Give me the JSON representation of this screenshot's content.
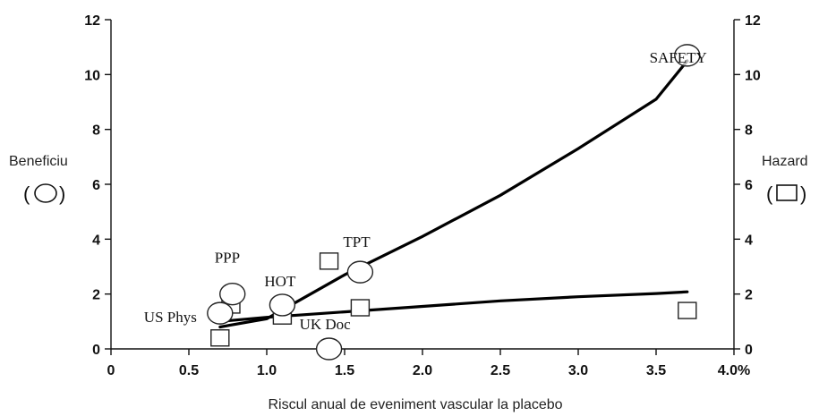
{
  "chart_data": {
    "type": "scatter",
    "xlabel": "Riscul anual de eveniment vascular la placebo",
    "ylabel_left": "Beneficiu",
    "ylabel_right": "Hazard",
    "left_symbol_open": "(",
    "left_symbol_close": ")",
    "right_symbol_open": "(",
    "right_symbol_close": ")",
    "xlim": [
      0,
      4.0
    ],
    "ylim": [
      0,
      12
    ],
    "x_ticks": [
      0,
      0.5,
      1.0,
      1.5,
      2.0,
      2.5,
      3.0,
      3.5,
      4.0
    ],
    "x_tick_labels": [
      "0",
      "0.5",
      "1.0",
      "1.5",
      "2.0",
      "2.5",
      "3.0",
      "3.5",
      "4.0%"
    ],
    "y_ticks": [
      0,
      2,
      4,
      6,
      8,
      10,
      12
    ],
    "y_tick_labels": [
      "0",
      "2",
      "4",
      "6",
      "8",
      "10",
      "12"
    ],
    "series": [
      {
        "marker": "circle",
        "points": [
          {
            "label": "US Phys",
            "x": 0.7,
            "y": 1.3
          },
          {
            "label": "PPP",
            "x": 0.78,
            "y": 2.0
          },
          {
            "label": "HOT",
            "x": 1.1,
            "y": 1.6
          },
          {
            "label": "UK Doc",
            "x": 1.4,
            "y": 0.0
          },
          {
            "label": "TPT",
            "x": 1.6,
            "y": 2.8
          },
          {
            "label": "SAFETY",
            "x": 3.7,
            "y": 10.7
          }
        ]
      },
      {
        "marker": "square",
        "points": [
          {
            "x": 0.7,
            "y": 0.4
          },
          {
            "x": 0.77,
            "y": 1.6
          },
          {
            "x": 1.1,
            "y": 1.2
          },
          {
            "x": 1.4,
            "y": 3.2
          },
          {
            "x": 1.6,
            "y": 1.5
          },
          {
            "x": 3.7,
            "y": 1.4
          }
        ]
      }
    ],
    "trend_lines": [
      {
        "points": [
          [
            0.7,
            0.8
          ],
          [
            1.0,
            1.1
          ],
          [
            1.5,
            2.7
          ],
          [
            2.0,
            4.1
          ],
          [
            2.5,
            5.6
          ],
          [
            3.0,
            7.3
          ],
          [
            3.5,
            9.1
          ],
          [
            3.7,
            10.5
          ]
        ]
      },
      {
        "points": [
          [
            0.7,
            1.0
          ],
          [
            1.0,
            1.15
          ],
          [
            1.5,
            1.35
          ],
          [
            2.0,
            1.55
          ],
          [
            2.5,
            1.75
          ],
          [
            3.0,
            1.9
          ],
          [
            3.5,
            2.02
          ],
          [
            3.7,
            2.08
          ]
        ]
      }
    ]
  }
}
